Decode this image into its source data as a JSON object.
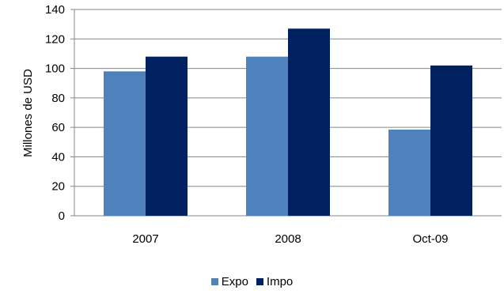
{
  "chart_data": {
    "type": "bar",
    "categories": [
      "2007",
      "2008",
      "Oct-09"
    ],
    "series": [
      {
        "name": "Expo",
        "values": [
          98,
          108,
          58.5
        ],
        "color": "#4f81bd"
      },
      {
        "name": "Impo",
        "values": [
          108,
          127,
          102
        ],
        "color": "#002060"
      }
    ],
    "ylabel": "Millones de USD",
    "ylim": [
      0,
      140
    ],
    "yticks": [
      0,
      20,
      40,
      60,
      80,
      100,
      120,
      140
    ],
    "grid": true,
    "gridColor": "#868686",
    "legend": "bottom"
  }
}
